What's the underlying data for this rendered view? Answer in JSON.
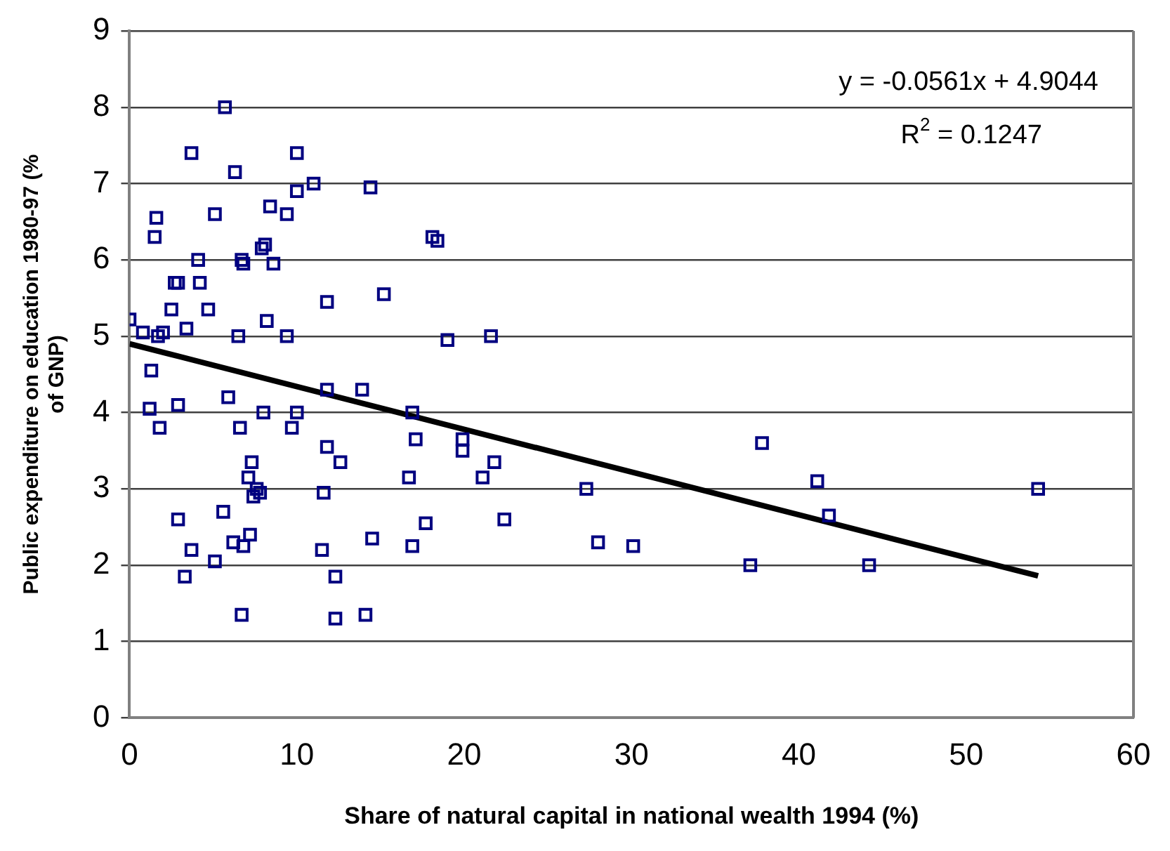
{
  "chart_data": {
    "type": "scatter",
    "xlabel": "Share of natural capital in national wealth 1994 (%)",
    "ylabel": "Public expenditure on education 1980-97 (% of GNP)",
    "xlim": [
      0,
      60
    ],
    "xticks": [
      0,
      10,
      20,
      30,
      40,
      50,
      60
    ],
    "ylim": [
      0,
      9
    ],
    "yticks": [
      0,
      1,
      2,
      3,
      4,
      5,
      6,
      7,
      8,
      9
    ],
    "grid": "y",
    "annotations": [
      "y = -0.0561x + 4.9044",
      "R$^{2}$ = 0.1247"
    ],
    "series": [
      {
        "marker": "square",
        "color": "#000080",
        "x": [
          0.0,
          0.8,
          1.3,
          1.2,
          1.5,
          1.6,
          1.7,
          1.8,
          2.0,
          2.5,
          2.7,
          2.9,
          2.9,
          2.9,
          3.4,
          3.3,
          3.7,
          3.7,
          4.1,
          4.2,
          4.7,
          5.1,
          5.1,
          5.6,
          5.7,
          5.9,
          6.2,
          6.3,
          6.5,
          6.6,
          6.7,
          6.8,
          6.7,
          6.8,
          7.1,
          7.2,
          7.3,
          7.4,
          7.6,
          7.8,
          7.9,
          8.0,
          8.1,
          8.2,
          8.4,
          8.6,
          9.4,
          9.4,
          9.7,
          10.0,
          10.0,
          10.0,
          11.0,
          11.5,
          11.6,
          11.8,
          11.8,
          11.8,
          12.3,
          12.3,
          12.6,
          13.9,
          14.1,
          14.4,
          14.5,
          15.2,
          16.7,
          16.9,
          16.9,
          17.1,
          17.7,
          18.1,
          18.4,
          19.0,
          19.9,
          19.9,
          21.1,
          21.6,
          21.8,
          22.4,
          27.3,
          28.0,
          30.1,
          37.1,
          37.8,
          41.1,
          41.8,
          44.2,
          54.3
        ],
        "values": [
          5.22,
          5.05,
          4.55,
          4.05,
          6.3,
          6.55,
          5.0,
          3.8,
          5.05,
          5.35,
          5.7,
          5.7,
          2.6,
          4.1,
          5.1,
          1.85,
          2.2,
          7.4,
          6.0,
          5.7,
          5.35,
          2.05,
          6.6,
          2.7,
          8.0,
          4.2,
          2.3,
          7.15,
          5.0,
          3.8,
          6.0,
          2.25,
          1.35,
          5.95,
          3.15,
          2.4,
          3.35,
          2.9,
          3.0,
          2.95,
          6.15,
          4.0,
          6.2,
          5.2,
          6.7,
          5.95,
          6.6,
          5.0,
          3.8,
          6.9,
          7.4,
          4.0,
          7.0,
          2.2,
          2.95,
          3.55,
          5.45,
          4.3,
          1.3,
          1.85,
          3.35,
          4.3,
          1.35,
          6.95,
          2.35,
          5.55,
          3.15,
          4.0,
          2.25,
          3.65,
          2.55,
          6.3,
          6.25,
          4.95,
          3.5,
          3.65,
          3.15,
          5.0,
          3.35,
          2.6,
          3.0,
          2.3,
          2.25,
          2.0,
          3.6,
          3.1,
          2.65,
          2.0,
          3.0
        ]
      },
      {
        "type": "line",
        "marker": "none",
        "color": "#000000",
        "x": [
          0,
          54.3
        ],
        "values": [
          4.9,
          1.86
        ]
      }
    ]
  }
}
